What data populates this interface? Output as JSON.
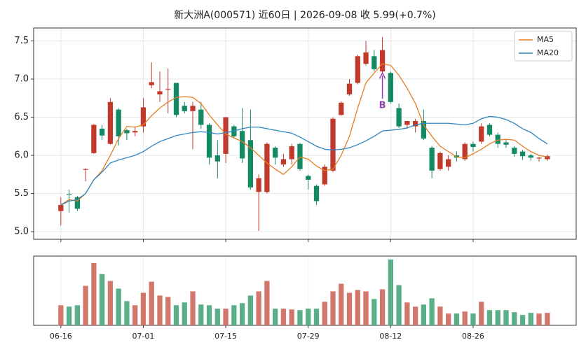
{
  "chart_data": [
    {
      "type": "candlestick",
      "title": "新大洲A(000571) 近60日  |  2026-09-08 收 5.99(+0.7%)",
      "open": [
        5.27,
        5.49,
        5.45,
        5.81,
        6.03,
        6.35,
        6.15,
        6.6,
        6.33,
        6.3,
        6.38,
        6.92,
        6.8,
        6.86,
        6.95,
        6.65,
        6.58,
        6.6,
        6.4,
        6.0,
        6.02,
        6.38,
        6.32,
        6.2,
        5.52,
        5.52,
        6.1,
        5.88,
        5.95,
        6.15,
        5.73,
        5.6,
        5.62,
        5.8,
        6.53,
        6.8,
        6.95,
        7.2,
        7.3,
        7.1,
        7.08,
        6.62,
        6.4,
        6.38,
        6.45,
        6.1,
        5.82,
        5.85,
        6.0,
        5.95,
        6.15,
        6.18,
        6.4,
        6.27,
        6.17,
        6.1,
        6.05,
        6.0,
        5.96,
        5.95
      ],
      "high": [
        5.45,
        5.55,
        5.47,
        5.83,
        6.41,
        6.4,
        6.75,
        6.62,
        6.35,
        6.38,
        6.75,
        7.22,
        7.1,
        7.14,
        6.95,
        6.7,
        6.7,
        6.7,
        6.42,
        6.2,
        6.5,
        6.4,
        6.62,
        6.6,
        5.75,
        6.17,
        6.12,
        6.02,
        6.15,
        6.16,
        5.75,
        5.62,
        5.88,
        6.5,
        6.71,
        7.0,
        7.32,
        7.5,
        7.38,
        7.55,
        7.1,
        6.68,
        6.45,
        6.48,
        6.6,
        6.12,
        6.05,
        6.0,
        6.05,
        6.17,
        6.18,
        6.42,
        6.42,
        6.3,
        6.2,
        6.12,
        6.07,
        6.02,
        5.98,
        6.01
      ],
      "low": [
        5.08,
        5.25,
        5.27,
        5.66,
        6.02,
        6.2,
        6.14,
        6.13,
        6.2,
        6.25,
        6.3,
        6.88,
        6.7,
        6.55,
        6.5,
        6.55,
        6.08,
        6.35,
        5.88,
        5.7,
        5.9,
        6.22,
        5.9,
        5.55,
        5.01,
        5.5,
        5.88,
        5.85,
        5.88,
        5.8,
        5.55,
        5.35,
        5.6,
        5.78,
        6.52,
        6.78,
        6.93,
        7.18,
        7.1,
        7.08,
        6.68,
        6.36,
        6.35,
        6.3,
        6.2,
        5.7,
        5.8,
        5.8,
        5.92,
        5.93,
        6.05,
        6.15,
        6.25,
        6.1,
        6.1,
        5.98,
        5.94,
        5.93,
        5.92,
        5.93
      ],
      "close": [
        5.35,
        5.48,
        5.3,
        5.82,
        6.4,
        6.26,
        6.7,
        6.25,
        6.29,
        6.32,
        6.63,
        6.96,
        6.84,
        6.87,
        6.53,
        6.58,
        6.65,
        6.4,
        5.97,
        5.92,
        6.5,
        6.25,
        5.96,
        5.58,
        5.7,
        6.15,
        5.97,
        5.95,
        6.12,
        5.82,
        5.68,
        5.4,
        5.85,
        6.48,
        6.69,
        6.94,
        7.3,
        7.35,
        7.13,
        7.38,
        6.7,
        6.38,
        6.45,
        6.45,
        6.22,
        5.8,
        6.03,
        5.95,
        5.97,
        6.15,
        6.11,
        6.38,
        6.27,
        6.15,
        6.14,
        6.02,
        5.99,
        5.97,
        5.97,
        5.99
      ],
      "up_color": "#c0392b",
      "down_color": "#138a63",
      "series": [
        {
          "name": "MA5",
          "color": "#e67e22",
          "values": [
            5.35,
            5.42,
            5.4,
            5.5,
            5.68,
            5.8,
            6.0,
            6.22,
            6.38,
            6.37,
            6.4,
            6.52,
            6.62,
            6.7,
            6.76,
            6.77,
            6.76,
            6.68,
            6.53,
            6.4,
            6.28,
            6.23,
            6.18,
            6.1,
            6.0,
            5.9,
            5.82,
            5.75,
            5.85,
            5.98,
            5.95,
            5.86,
            5.8,
            5.82,
            6.0,
            6.25,
            6.62,
            6.95,
            7.08,
            7.2,
            7.18,
            7.05,
            6.88,
            6.68,
            6.4,
            6.25,
            6.12,
            6.05,
            5.98,
            5.97,
            6.02,
            6.08,
            6.15,
            6.2,
            6.21,
            6.2,
            6.12,
            6.05,
            6.0,
            5.98
          ]
        },
        {
          "name": "MA20",
          "color": "#2e86c1",
          "values": [
            5.35,
            5.4,
            5.42,
            5.5,
            5.68,
            5.78,
            5.9,
            5.94,
            5.97,
            6.0,
            6.05,
            6.12,
            6.18,
            6.22,
            6.26,
            6.28,
            6.3,
            6.31,
            6.3,
            6.28,
            6.3,
            6.32,
            6.35,
            6.37,
            6.37,
            6.35,
            6.33,
            6.31,
            6.29,
            6.24,
            6.18,
            6.12,
            6.08,
            6.07,
            6.08,
            6.1,
            6.14,
            6.19,
            6.25,
            6.32,
            6.33,
            6.34,
            6.36,
            6.4,
            6.42,
            6.42,
            6.42,
            6.42,
            6.41,
            6.4,
            6.42,
            6.48,
            6.51,
            6.5,
            6.47,
            6.42,
            6.35,
            6.3,
            6.22,
            6.15
          ]
        }
      ],
      "xlim": [
        -3.3,
        62.5
      ],
      "xticks": [
        0,
        10,
        20,
        30,
        40,
        50
      ],
      "ylim": [
        4.9,
        7.67
      ],
      "yticks": [
        {
          "value": 5,
          "label": "5.0"
        },
        5.5,
        {
          "value": 6,
          "label": "6.0"
        },
        6.5,
        {
          "value": 7,
          "label": "7.0"
        },
        7.5
      ],
      "grid": true,
      "legend": "upper right",
      "annotations": [
        {
          "text": "B",
          "index": 39,
          "y": 6.65,
          "arrow_to": 7.08,
          "color": "#8e44ad"
        }
      ]
    },
    {
      "type": "bar",
      "categories": [
        "06-16",
        null,
        null,
        null,
        null,
        null,
        null,
        null,
        null,
        null,
        "07-01",
        null,
        null,
        null,
        null,
        null,
        null,
        null,
        null,
        null,
        "07-15",
        null,
        null,
        null,
        null,
        null,
        null,
        null,
        null,
        null,
        "07-29",
        null,
        null,
        null,
        null,
        null,
        null,
        null,
        null,
        null,
        "08-12",
        null,
        null,
        null,
        null,
        null,
        null,
        null,
        null,
        null,
        "08-26",
        null,
        null,
        null,
        null,
        null,
        null,
        null,
        null,
        null
      ],
      "values": [
        29,
        27,
        29,
        57,
        90,
        74,
        64,
        53,
        35,
        29,
        47,
        63,
        43,
        41,
        29,
        33,
        49,
        30,
        29,
        24,
        24,
        29,
        32,
        43,
        49,
        64,
        24,
        24,
        23,
        22,
        24,
        24,
        34,
        49,
        60,
        47,
        51,
        49,
        38,
        52,
        95,
        58,
        33,
        27,
        30,
        39,
        27,
        17,
        17,
        20,
        17,
        34,
        22,
        22,
        22,
        19,
        15,
        18,
        17,
        18
      ],
      "up_color": "#d2776c",
      "down_color": "#5aae88",
      "xticks": [
        0,
        10,
        20,
        30,
        40,
        50
      ],
      "xlim": [
        -3.3,
        62.5
      ],
      "ylim": [
        0,
        100
      ],
      "grid": true
    }
  ]
}
